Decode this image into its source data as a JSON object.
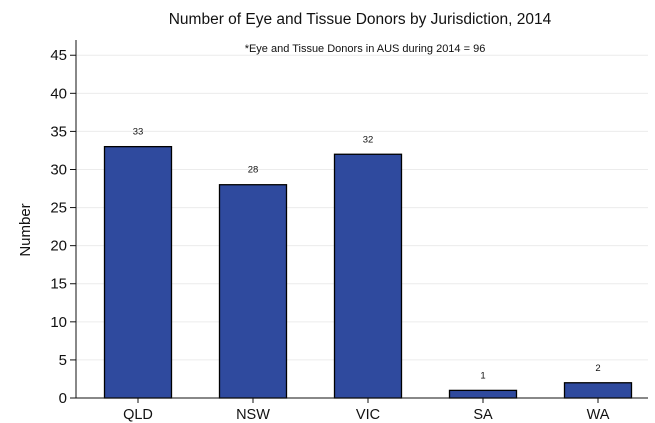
{
  "chart_data": {
    "type": "bar",
    "title": "Number of Eye and Tissue Donors by Jurisdiction, 2014",
    "annotation": "*Eye and Tissue Donors in AUS during 2014 = 96",
    "xlabel": "",
    "ylabel": "Number",
    "categories": [
      "QLD",
      "NSW",
      "VIC",
      "SA",
      "WA"
    ],
    "values": [
      33,
      28,
      32,
      1,
      2
    ],
    "data_labels": [
      "33",
      "28",
      "32",
      "1",
      "2"
    ],
    "ylim": [
      0,
      47
    ],
    "yticks": [
      0,
      5,
      10,
      15,
      20,
      25,
      30,
      35,
      40,
      45
    ],
    "grid": true,
    "bar_color": "#2f4a9e"
  }
}
